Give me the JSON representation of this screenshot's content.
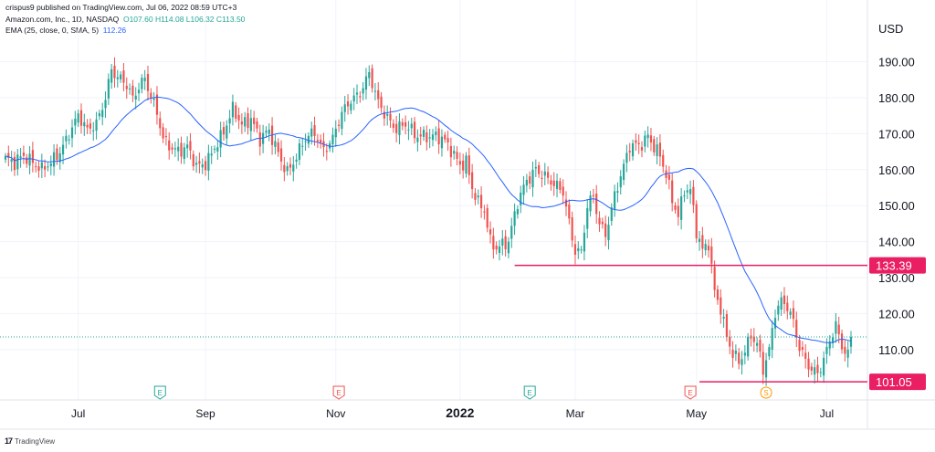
{
  "header": {
    "published": "crispus9 published on TradingView.com, Jul 06, 2022 08:59 UTC+3",
    "symbol": "Amazon.com, Inc., 1D, NASDAQ",
    "ohlc": "O107.60  H114.08  L106.32  C113.50",
    "ema_label": "EMA (25, close, 0, SMA, 5)",
    "ema_value": "112.26"
  },
  "footer": {
    "brand": "TradingView",
    "logo": "17"
  },
  "colors": {
    "up": "#26a69a",
    "down": "#ef5350",
    "ema": "#2962ff",
    "level": "#e91e63",
    "grid": "#f0f3fa"
  },
  "chart_data": {
    "type": "candlestick",
    "currency": "USD",
    "ylim": [
      96,
      197
    ],
    "y_ticks": [
      110,
      120,
      130,
      140,
      150,
      160,
      170,
      180,
      190
    ],
    "y_tick_labels": [
      "110.00",
      "120.00",
      "130.00",
      "140.00",
      "150.00",
      "160.00",
      "170.00",
      "180.00",
      "190.00"
    ],
    "x_tick_labels": [
      {
        "label": "Jul",
        "index": 24
      },
      {
        "label": "Sep",
        "index": 66
      },
      {
        "label": "Nov",
        "index": 109
      },
      {
        "label": "2022",
        "index": 150
      },
      {
        "label": "Mar",
        "index": 188
      },
      {
        "label": "May",
        "index": 228
      },
      {
        "label": "Jul",
        "index": 271
      }
    ],
    "current_price": 113.5,
    "levels": [
      {
        "value": 133.39,
        "label": "133.39",
        "start_index": 168
      },
      {
        "value": 101.05,
        "label": "101.05",
        "start_index": 229
      }
    ],
    "events": [
      {
        "index": 51,
        "label": "E",
        "kind": "earnings-past"
      },
      {
        "index": 110,
        "label": "E",
        "kind": "earnings"
      },
      {
        "index": 173,
        "label": "E",
        "kind": "earnings-past"
      },
      {
        "index": 226,
        "label": "E",
        "kind": "earnings"
      },
      {
        "index": 251,
        "label": "S",
        "kind": "split"
      }
    ],
    "waypoints": [
      [
        0,
        163
      ],
      [
        3,
        161
      ],
      [
        6,
        164
      ],
      [
        9,
        163
      ],
      [
        12,
        160
      ],
      [
        15,
        161
      ],
      [
        18,
        165
      ],
      [
        21,
        171
      ],
      [
        24,
        175
      ],
      [
        27,
        170
      ],
      [
        30,
        173
      ],
      [
        33,
        181
      ],
      [
        35,
        188
      ],
      [
        37,
        185
      ],
      [
        40,
        183
      ],
      [
        42,
        180
      ],
      [
        44,
        184
      ],
      [
        46,
        186
      ],
      [
        48,
        180
      ],
      [
        50,
        175
      ],
      [
        52,
        168
      ],
      [
        54,
        167
      ],
      [
        57,
        166
      ],
      [
        60,
        166
      ],
      [
        63,
        160
      ],
      [
        66,
        162
      ],
      [
        69,
        167
      ],
      [
        72,
        170
      ],
      [
        75,
        176
      ],
      [
        78,
        173
      ],
      [
        81,
        175
      ],
      [
        84,
        168
      ],
      [
        87,
        170
      ],
      [
        90,
        165
      ],
      [
        93,
        160
      ],
      [
        96,
        163
      ],
      [
        99,
        168
      ],
      [
        102,
        171
      ],
      [
        105,
        166
      ],
      [
        108,
        168
      ],
      [
        111,
        175
      ],
      [
        114,
        180
      ],
      [
        117,
        182
      ],
      [
        120,
        186
      ],
      [
        123,
        178
      ],
      [
        126,
        175
      ],
      [
        129,
        172
      ],
      [
        132,
        172
      ],
      [
        135,
        169
      ],
      [
        138,
        170
      ],
      [
        141,
        170
      ],
      [
        144,
        168
      ],
      [
        147,
        165
      ],
      [
        150,
        162
      ],
      [
        152,
        163
      ],
      [
        154,
        155
      ],
      [
        156,
        150
      ],
      [
        158,
        148
      ],
      [
        160,
        140
      ],
      [
        162,
        139
      ],
      [
        164,
        140
      ],
      [
        166,
        140
      ],
      [
        169,
        150
      ],
      [
        172,
        157
      ],
      [
        175,
        161
      ],
      [
        178,
        158
      ],
      [
        181,
        155
      ],
      [
        184,
        154
      ],
      [
        186,
        146
      ],
      [
        188,
        138
      ],
      [
        190,
        137
      ],
      [
        192,
        149
      ],
      [
        194,
        152
      ],
      [
        196,
        145
      ],
      [
        198,
        143
      ],
      [
        201,
        153
      ],
      [
        204,
        160
      ],
      [
        206,
        166
      ],
      [
        208,
        167
      ],
      [
        210,
        168
      ],
      [
        212,
        170
      ],
      [
        214,
        166
      ],
      [
        216,
        163
      ],
      [
        218,
        158
      ],
      [
        220,
        152
      ],
      [
        222,
        148
      ],
      [
        224,
        155
      ],
      [
        226,
        154
      ],
      [
        228,
        142
      ],
      [
        230,
        137
      ],
      [
        232,
        140
      ],
      [
        234,
        127
      ],
      [
        236,
        122
      ],
      [
        238,
        113
      ],
      [
        240,
        108
      ],
      [
        242,
        106
      ],
      [
        244,
        110
      ],
      [
        246,
        115
      ],
      [
        248,
        112
      ],
      [
        250,
        104
      ],
      [
        252,
        109
      ],
      [
        254,
        120
      ],
      [
        256,
        124
      ],
      [
        258,
        123
      ],
      [
        260,
        118
      ],
      [
        262,
        110
      ],
      [
        264,
        106
      ],
      [
        266,
        104
      ],
      [
        268,
        104
      ],
      [
        270,
        108
      ],
      [
        272,
        113
      ],
      [
        274,
        116
      ],
      [
        276,
        110
      ],
      [
        278,
        108
      ],
      [
        279,
        113.5
      ]
    ]
  }
}
